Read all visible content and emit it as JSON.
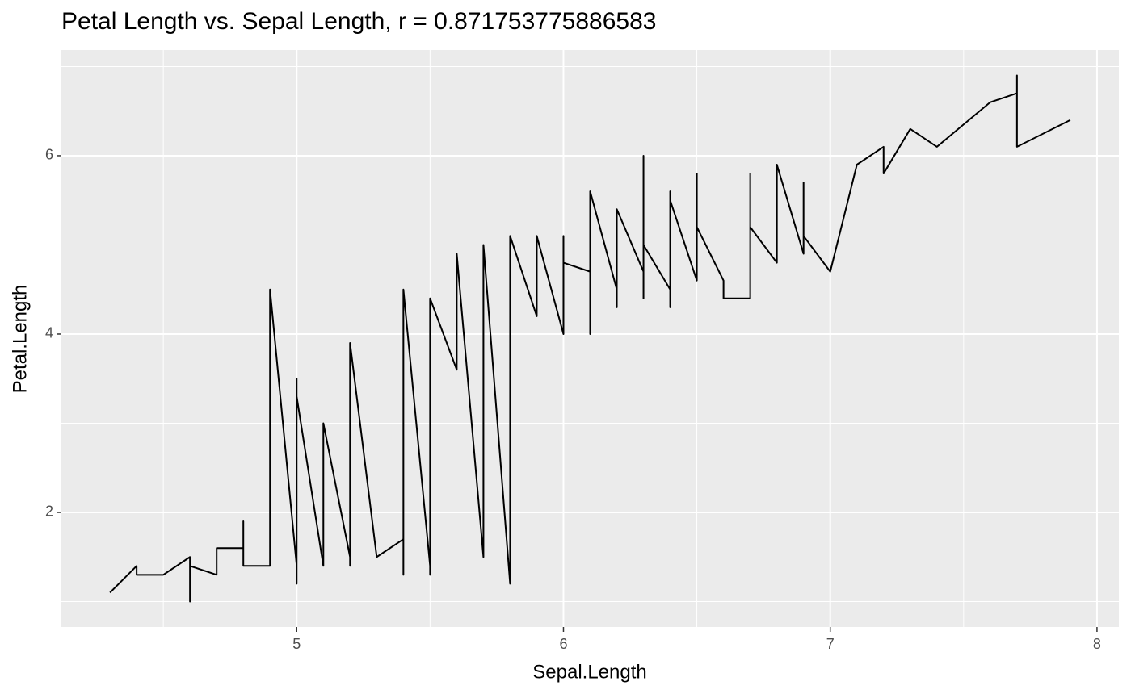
{
  "chart_data": {
    "type": "line",
    "title": "Petal Length vs. Sepal Length, r = 0.871753775886583",
    "x_label": "Sepal.Length",
    "y_label": "Petal.Length",
    "x": [
      4.3,
      4.4,
      4.4,
      4.4,
      4.5,
      4.6,
      4.6,
      4.6,
      4.6,
      4.7,
      4.7,
      4.8,
      4.8,
      4.8,
      4.8,
      4.8,
      4.9,
      4.9,
      4.9,
      4.9,
      4.9,
      4.9,
      5.0,
      5.0,
      5.0,
      5.0,
      5.0,
      5.0,
      5.0,
      5.0,
      5.0,
      5.0,
      5.1,
      5.1,
      5.1,
      5.1,
      5.1,
      5.1,
      5.1,
      5.1,
      5.1,
      5.2,
      5.2,
      5.2,
      5.2,
      5.3,
      5.4,
      5.4,
      5.4,
      5.4,
      5.4,
      5.4,
      5.5,
      5.5,
      5.5,
      5.5,
      5.5,
      5.5,
      5.5,
      5.6,
      5.6,
      5.6,
      5.6,
      5.6,
      5.6,
      5.7,
      5.7,
      5.7,
      5.7,
      5.7,
      5.7,
      5.7,
      5.7,
      5.8,
      5.8,
      5.8,
      5.8,
      5.8,
      5.8,
      5.8,
      5.9,
      5.9,
      5.9,
      6.0,
      6.0,
      6.0,
      6.0,
      6.0,
      6.0,
      6.1,
      6.1,
      6.1,
      6.1,
      6.1,
      6.1,
      6.2,
      6.2,
      6.2,
      6.2,
      6.3,
      6.3,
      6.3,
      6.3,
      6.3,
      6.3,
      6.3,
      6.3,
      6.3,
      6.4,
      6.4,
      6.4,
      6.4,
      6.4,
      6.4,
      6.4,
      6.5,
      6.5,
      6.5,
      6.5,
      6.5,
      6.6,
      6.6,
      6.7,
      6.7,
      6.7,
      6.7,
      6.7,
      6.7,
      6.7,
      6.7,
      6.8,
      6.8,
      6.8,
      6.9,
      6.9,
      6.9,
      6.9,
      7.0,
      7.1,
      7.2,
      7.2,
      7.2,
      7.3,
      7.4,
      7.6,
      7.7,
      7.7,
      7.7,
      7.7,
      7.9
    ],
    "values": [
      1.1,
      1.4,
      1.3,
      1.3,
      1.3,
      1.5,
      1.4,
      1.0,
      1.4,
      1.3,
      1.6,
      1.6,
      1.4,
      1.9,
      1.6,
      1.4,
      1.4,
      1.5,
      1.5,
      1.4,
      3.3,
      4.5,
      1.4,
      1.5,
      1.6,
      1.6,
      1.2,
      1.3,
      1.6,
      1.4,
      3.5,
      3.3,
      1.4,
      1.4,
      1.5,
      1.5,
      1.7,
      1.5,
      1.9,
      1.6,
      3.0,
      1.5,
      1.4,
      1.5,
      3.9,
      1.5,
      1.7,
      1.5,
      1.3,
      1.7,
      1.5,
      4.5,
      1.4,
      1.3,
      4.0,
      3.8,
      3.7,
      4.0,
      4.4,
      3.6,
      4.5,
      3.9,
      4.1,
      4.2,
      4.9,
      1.5,
      1.7,
      4.5,
      3.5,
      4.2,
      4.2,
      4.1,
      5.0,
      1.2,
      4.1,
      3.9,
      4.0,
      5.1,
      5.1,
      5.1,
      4.2,
      4.8,
      5.1,
      4.0,
      4.5,
      5.1,
      4.5,
      5.0,
      4.8,
      4.7,
      4.0,
      4.7,
      4.6,
      4.9,
      5.6,
      4.5,
      4.3,
      4.8,
      5.4,
      4.7,
      4.9,
      4.4,
      6.0,
      5.6,
      4.9,
      5.1,
      5.6,
      5.0,
      4.5,
      4.3,
      5.3,
      5.3,
      5.6,
      5.6,
      5.5,
      4.6,
      5.8,
      5.1,
      5.5,
      5.2,
      4.6,
      4.4,
      4.4,
      5.0,
      4.7,
      5.8,
      5.7,
      5.6,
      5.7,
      5.2,
      4.8,
      5.5,
      5.9,
      4.9,
      5.7,
      5.4,
      5.1,
      4.7,
      5.9,
      6.1,
      6.0,
      5.8,
      6.3,
      6.1,
      6.6,
      6.7,
      6.9,
      6.7,
      6.1,
      6.4
    ],
    "color": "#000000",
    "xlim": [
      4.118,
      8.082
    ],
    "ylim": [
      0.715,
      7.185
    ],
    "xticks": [
      5,
      6,
      7,
      8
    ],
    "yticks": [
      2,
      4,
      6
    ],
    "grid": true
  }
}
